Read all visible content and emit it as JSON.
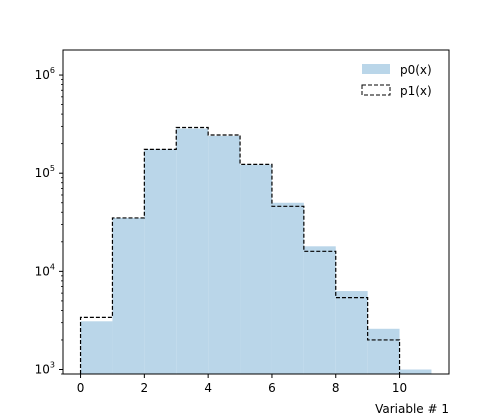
{
  "chart_data": {
    "type": "bar",
    "subtype": "step-histogram",
    "title": "",
    "xlabel": "Variable # 1",
    "ylabel": "",
    "yscale": "log",
    "xlim": [
      -0.55,
      11.55
    ],
    "ylim": [
      900,
      1800000
    ],
    "bin_edges": [
      0,
      1,
      2,
      3,
      4,
      5,
      6,
      7,
      8,
      9,
      10,
      11
    ],
    "x_ticks": [
      0,
      2,
      4,
      6,
      8,
      10
    ],
    "x_tick_labels": [
      "0",
      "2",
      "4",
      "6",
      "8",
      "10"
    ],
    "y_ticks": [
      1000,
      10000,
      100000,
      1000000
    ],
    "y_tick_labels": [
      {
        "base": "10",
        "exp": "3"
      },
      {
        "base": "10",
        "exp": "4"
      },
      {
        "base": "10",
        "exp": "5"
      },
      {
        "base": "10",
        "exp": "6"
      }
    ],
    "grid": false,
    "legend_placement": "top-right",
    "series": [
      {
        "name": "p0(x)",
        "style": "filled",
        "color": "#bad6e9",
        "values": [
          3100,
          35000,
          175000,
          285000,
          240000,
          122000,
          50000,
          18000,
          6300,
          2600,
          1000
        ]
      },
      {
        "name": "p1(x)",
        "style": "dashed-step",
        "color": "#000000",
        "values": [
          3400,
          35000,
          175000,
          292000,
          245000,
          123000,
          46000,
          16000,
          5400,
          2000,
          null
        ]
      }
    ]
  }
}
